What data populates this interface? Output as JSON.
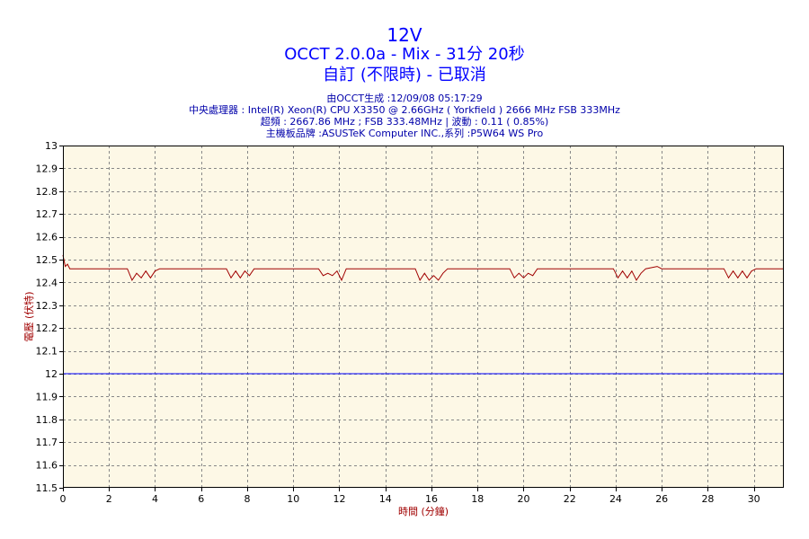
{
  "header": {
    "title": "12V",
    "subtitle": "OCCT 2.0.0a - Mix - 31分 20秒",
    "subtitle2": "自訂 (不限時) - 已取消",
    "info": [
      "由OCCT生成 :12/09/08 05:17:29",
      "中央處理器 : Intel(R) Xeon(R) CPU X3350 @ 2.66GHz ( Yorkfield ) 2666 MHz FSB 333MHz",
      "超頻 : 2667.86 MHz ; FSB 333.48MHz | 波動 : 0.11 ( 0.85%)",
      "主機板品牌 :ASUSTeK Computer INC.,系列 :P5W64 WS Pro"
    ]
  },
  "colors": {
    "plot_background": "#fdf8e6",
    "grid": "#888888",
    "series_voltage": "#a00000",
    "reference_line": "#0000ff",
    "title_text": "#0000ff",
    "axis_label_text": "#a00000"
  },
  "chart_data": {
    "type": "line",
    "xlabel": "時間 (分鐘)",
    "ylabel": "電壓 (伏特)",
    "xlim": [
      0,
      31.3
    ],
    "ylim": [
      11.5,
      13
    ],
    "xticks": [
      0,
      2,
      4,
      6,
      8,
      10,
      12,
      14,
      16,
      18,
      20,
      22,
      24,
      26,
      28,
      30
    ],
    "yticks": [
      11.5,
      11.6,
      11.7,
      11.8,
      11.9,
      12,
      12.1,
      12.2,
      12.3,
      12.4,
      12.5,
      12.6,
      12.7,
      12.8,
      12.9,
      13
    ],
    "grid": true,
    "legend": "none",
    "series": [
      {
        "x": [
          0,
          0.1,
          0.2,
          0.3,
          0.5,
          2.8,
          3.0,
          3.2,
          3.4,
          3.6,
          3.8,
          4.0,
          4.2,
          7.1,
          7.3,
          7.5,
          7.7,
          7.9,
          8.1,
          8.3,
          11.1,
          11.3,
          11.5,
          11.7,
          11.9,
          12.1,
          12.3,
          15.3,
          15.5,
          15.7,
          15.9,
          16.1,
          16.3,
          16.5,
          16.7,
          19.4,
          19.6,
          19.8,
          20.0,
          20.2,
          20.4,
          20.6,
          23.9,
          24.1,
          24.3,
          24.5,
          24.7,
          24.9,
          25.1,
          25.3,
          25.8,
          26.0,
          28.7,
          28.9,
          29.1,
          29.3,
          29.5,
          29.7,
          29.9,
          30.1,
          31.3
        ],
        "values": [
          12.52,
          12.47,
          12.48,
          12.46,
          12.46,
          12.46,
          12.41,
          12.44,
          12.42,
          12.45,
          12.42,
          12.45,
          12.46,
          12.46,
          12.42,
          12.45,
          12.42,
          12.45,
          12.43,
          12.46,
          12.46,
          12.43,
          12.44,
          12.43,
          12.45,
          12.41,
          12.46,
          12.46,
          12.41,
          12.44,
          12.41,
          12.43,
          12.41,
          12.44,
          12.46,
          12.46,
          12.42,
          12.44,
          12.42,
          12.44,
          12.43,
          12.46,
          12.46,
          12.42,
          12.45,
          12.42,
          12.45,
          12.41,
          12.44,
          12.46,
          12.47,
          12.46,
          12.46,
          12.42,
          12.45,
          12.42,
          12.45,
          12.42,
          12.45,
          12.46,
          12.46
        ]
      },
      {
        "x": [
          0,
          31.3
        ],
        "values": [
          12,
          12
        ]
      }
    ]
  }
}
